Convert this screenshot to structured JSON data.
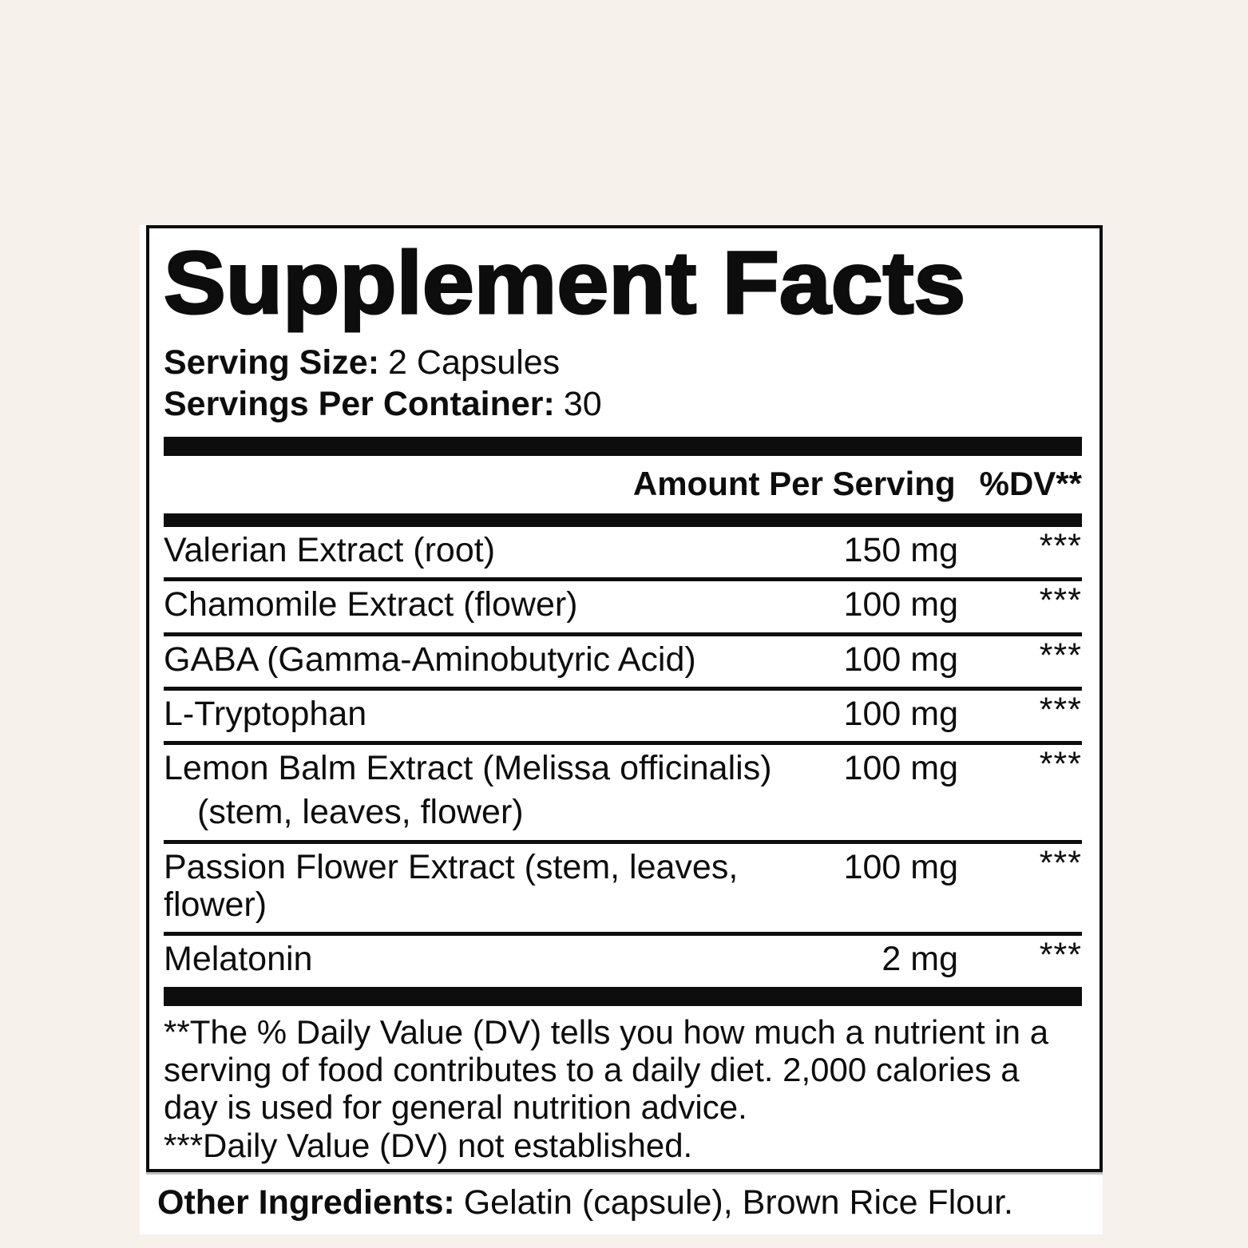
{
  "colors": {
    "background": "#f7f1ec",
    "label_background": "#ffffff",
    "ink": "#0d0d0d"
  },
  "title": "Supplement Facts",
  "serving": {
    "size_label": "Serving Size:",
    "size_value": "2 Capsules",
    "container_label": "Servings Per Container:",
    "container_value": "30"
  },
  "columns": {
    "amount_header": "Amount Per Serving",
    "dv_header": "%DV**"
  },
  "rows": [
    {
      "name": "Valerian Extract (root)",
      "name2": "",
      "amount": "150 mg",
      "dv": "***"
    },
    {
      "name": "Chamomile Extract (flower)",
      "name2": "",
      "amount": "100 mg",
      "dv": "***"
    },
    {
      "name": "GABA (Gamma-Aminobutyric Acid)",
      "name2": "",
      "amount": "100 mg",
      "dv": "***"
    },
    {
      "name": "L-Tryptophan",
      "name2": "",
      "amount": "100 mg",
      "dv": "***"
    },
    {
      "name": "Lemon Balm Extract (Melissa officinalis)",
      "name2": "(stem, leaves, flower)",
      "amount": "100 mg",
      "dv": "***"
    },
    {
      "name": "Passion Flower Extract (stem, leaves, flower)",
      "name2": "",
      "amount": "100 mg",
      "dv": "***"
    },
    {
      "name": "Melatonin",
      "name2": "",
      "amount": "2 mg",
      "dv": "***"
    }
  ],
  "footnotes": [
    "**The % Daily Value (DV) tells you how much a nutrient in a serving of food contributes to a daily diet. 2,000 calories a day is used for general nutrition advice.",
    "***Daily Value (DV) not established."
  ],
  "other_ingredients": {
    "label": "Other Ingredients:",
    "value": "Gelatin (capsule), Brown Rice Flour."
  }
}
